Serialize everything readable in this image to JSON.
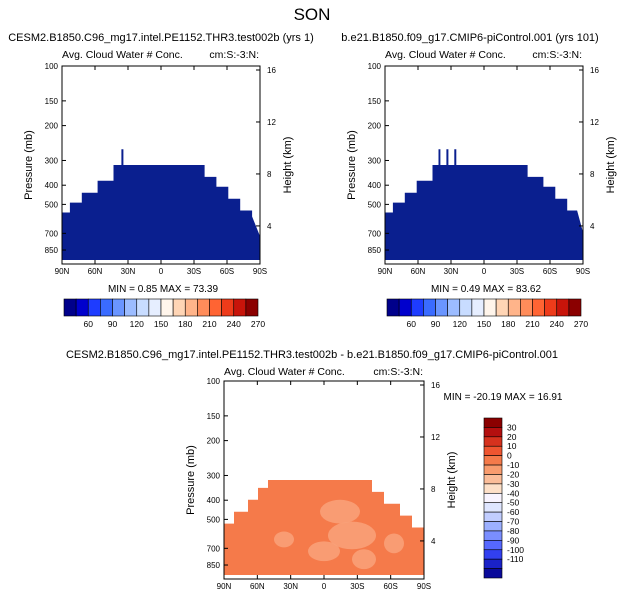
{
  "page": {
    "title": "SON"
  },
  "colors": {
    "contour_scale": [
      "#00008b",
      "#0000cd",
      "#1e3cff",
      "#3a6bff",
      "#6a95ff",
      "#9cbcff",
      "#c8dcff",
      "#e6eeff",
      "#fff5eb",
      "#ffd5b5",
      "#ffb48a",
      "#ff8c5a",
      "#ff6433",
      "#ee3b1a",
      "#c8140a",
      "#8b0000"
    ],
    "panel_fill_ctl": "#0a1f8f",
    "diff_fill": "#f57a4a",
    "diff_fill_light": "#f9a27a",
    "diff_scale": [
      "#8b0000",
      "#b40f0f",
      "#d6321e",
      "#ef5530",
      "#f57a4a",
      "#f99c6e",
      "#fbbd99",
      "#fde0c8",
      "#f8f4ff",
      "#dfe6ff",
      "#c1cdff",
      "#9cb0ff",
      "#7a8eff",
      "#5668ff",
      "#3240f0",
      "#1a22c8",
      "#0a0a9a"
    ]
  },
  "panels": [
    {
      "title": "CESM2.B1850.C96_mg17.intel.PE1152.THR3.test002b (yrs 1)",
      "subtitle_left": "Avg. Cloud Water # Conc.",
      "subtitle_right": "cm:S:-3:N:",
      "stats": "MIN =   0.85   MAX =  73.39",
      "colorbar_labels": [
        "60",
        "90",
        "120",
        "150",
        "180",
        "210",
        "240",
        "270"
      ]
    },
    {
      "title": "b.e21.B1850.f09_g17.CMIP6-piControl.001 (yrs 101)",
      "subtitle_left": "Avg. Cloud Water # Conc.",
      "subtitle_right": "cm:S:-3:N:",
      "stats": "MIN =   0.49   MAX =  83.62",
      "colorbar_labels": [
        "60",
        "90",
        "120",
        "150",
        "180",
        "210",
        "240",
        "270"
      ]
    },
    {
      "title": "CESM2.B1850.C96_mg17.intel.PE1152.THR3.test002b - b.e21.B1850.f09_g17.CMIP6-piControl.001",
      "subtitle_left": "Avg. Cloud Water # Conc.",
      "subtitle_right": "cm:S:-3:N:",
      "stats": "MIN = -20.19   MAX =  16.91",
      "colorbar_labels": [
        "30",
        "20",
        "10",
        "0",
        "-10",
        "-20",
        "-30",
        "-40",
        "-50",
        "-60",
        "-70",
        "-80",
        "-90",
        "-100",
        "-110"
      ]
    }
  ],
  "chart_data": {
    "type": "heatmap",
    "xlabel": "",
    "ylabel": "Pressure (mb)",
    "y2label": "Height (km)",
    "x_ticks": [
      "90N",
      "60N",
      "30N",
      "0",
      "30S",
      "60S",
      "90S"
    ],
    "y_ticks": [
      "100",
      "150",
      "200",
      "300",
      "400",
      "500",
      "700",
      "850"
    ],
    "y2_ticks": [
      "16",
      "12",
      "8",
      "4"
    ],
    "x_range": [
      -90,
      90
    ],
    "y_range_mb": [
      100,
      1000
    ],
    "y_log": true
  }
}
